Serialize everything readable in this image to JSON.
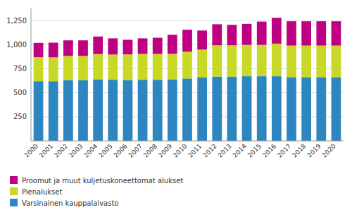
{
  "chart_data": {
    "type": "bar",
    "stacked": true,
    "categories": [
      "2000",
      "2001",
      "2002",
      "2003",
      "2004",
      "2005",
      "2006",
      "2007",
      "2008",
      "2009",
      "2010",
      "2011",
      "2012",
      "2013",
      "2014",
      "2015",
      "2016",
      "2017",
      "2018",
      "2019",
      "2020"
    ],
    "series": [
      {
        "name": "Varsinainen kauppalaivasto",
        "color": "#2E86C1",
        "values": [
          620,
          620,
          630,
          630,
          640,
          635,
          630,
          635,
          635,
          638,
          648,
          658,
          668,
          668,
          672,
          672,
          672,
          662,
          662,
          662,
          658
        ]
      },
      {
        "name": "Pienalukset",
        "color": "#C8D827",
        "values": [
          250,
          248,
          252,
          252,
          262,
          262,
          268,
          268,
          268,
          266,
          278,
          290,
          325,
          325,
          325,
          325,
          338,
          328,
          328,
          328,
          332
        ]
      },
      {
        "name": "Proomut ja muut kuljetuskoneettomat alukset",
        "color": "#BE0082",
        "values": [
          148,
          152,
          162,
          162,
          182,
          168,
          152,
          162,
          168,
          198,
          228,
          198,
          218,
          212,
          218,
          242,
          268,
          252,
          252,
          252,
          252
        ]
      }
    ],
    "ylim": [
      0,
      1375
    ],
    "yticks": [
      250,
      500,
      750,
      {
        "value": 1000,
        "label": "1,000"
      },
      {
        "value": 1250,
        "label": "1,250"
      }
    ],
    "grid": true,
    "legend": "bottom"
  }
}
